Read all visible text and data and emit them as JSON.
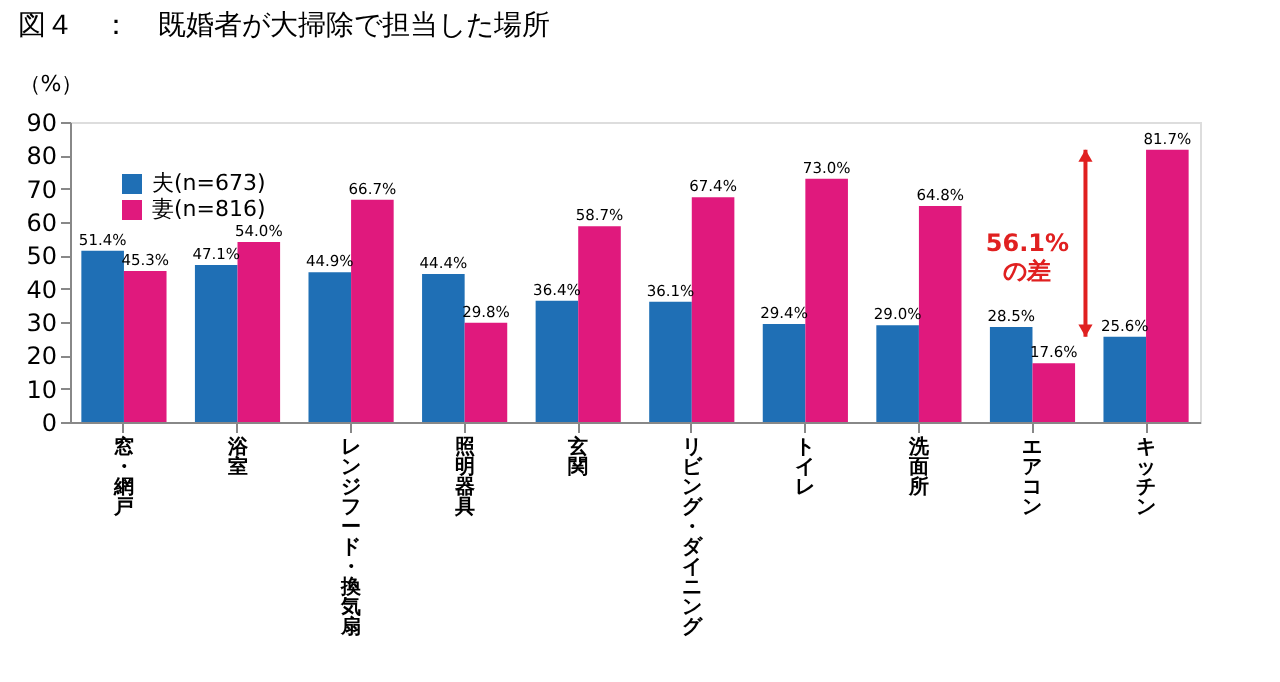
{
  "chart_data": {
    "type": "bar",
    "title": "図４　：　既婚者が大掃除で担当した場所",
    "ylabel": "（%）",
    "categories": [
      "窓・網戸",
      "浴室",
      "レンジフード・換気扇",
      "照明器具",
      "玄関",
      "リビング・ダイニング",
      "トイレ",
      "洗面所",
      "エアコン",
      "キッチン"
    ],
    "series": [
      {
        "name": "夫(n=673)",
        "color": "#1f6fb5",
        "values": [
          51.4,
          47.1,
          44.9,
          44.4,
          36.4,
          36.1,
          29.4,
          29.0,
          28.5,
          25.6
        ],
        "value_labels": [
          "51.4%",
          "47.1%",
          "44.9%",
          "44.4%",
          "36.4%",
          "36.1%",
          "29.4%",
          "29.0%",
          "28.5%",
          "25.6%"
        ]
      },
      {
        "name": "妻(n=816)",
        "color": "#e0197d",
        "values": [
          45.3,
          54.0,
          66.7,
          29.8,
          58.7,
          67.4,
          73.0,
          64.8,
          17.6,
          81.7
        ],
        "value_labels": [
          "45.3%",
          "54.0%",
          "66.7%",
          "29.8%",
          "58.7%",
          "67.4%",
          "73.0%",
          "64.8%",
          "17.6%",
          "81.7%"
        ]
      }
    ],
    "ylim": [
      0,
      90
    ],
    "yticks": [
      0,
      10,
      20,
      30,
      40,
      50,
      60,
      70,
      80,
      90
    ],
    "grid": false,
    "legend": "top left",
    "annotations": [
      "56.1%\nの差"
    ]
  }
}
